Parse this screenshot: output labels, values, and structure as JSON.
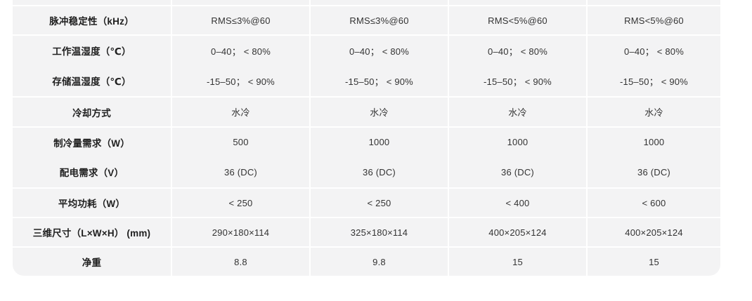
{
  "table": {
    "name": "product-specifications",
    "rows": [
      {
        "label": "脉冲稳定性（kHz）",
        "values": [
          "RMS≤3%@60",
          "RMS≤3%@60",
          "RMS<5%@60",
          "RMS<5%@60"
        ]
      },
      {
        "label": "工作温湿度（℃）",
        "values": [
          "0–40； < 80%",
          "0–40； < 80%",
          "0–40； < 80%",
          "0–40； < 80%"
        ]
      },
      {
        "label": "存储温湿度（℃）",
        "values": [
          "-15–50； < 90%",
          "-15–50； < 90%",
          "-15–50； < 90%",
          "-15–50； < 90%"
        ]
      },
      {
        "label": "冷却方式",
        "values": [
          "水冷",
          "水冷",
          "水冷",
          "水冷"
        ]
      },
      {
        "label": "制冷量需求（W）",
        "values": [
          "500",
          "1000",
          "1000",
          "1000"
        ]
      },
      {
        "label": "配电需求（V）",
        "values": [
          "36 (DC)",
          "36 (DC)",
          "36 (DC)",
          "36 (DC)"
        ]
      },
      {
        "label": "平均功耗（W）",
        "values": [
          "< 250",
          "< 250",
          "< 400",
          "< 600"
        ]
      },
      {
        "label": "三维尺寸（L×W×H） (mm)",
        "values": [
          "290×180×114",
          "325×180×114",
          "400×205×124",
          "400×205×124"
        ]
      },
      {
        "label": "净重",
        "values": [
          "8.8",
          "9.8",
          "15",
          "15"
        ]
      }
    ],
    "colors": {
      "cell_background": "#f3f3f4",
      "separator": "#ffffff",
      "label_text": "#1f1f1f",
      "value_text": "#333333"
    }
  }
}
